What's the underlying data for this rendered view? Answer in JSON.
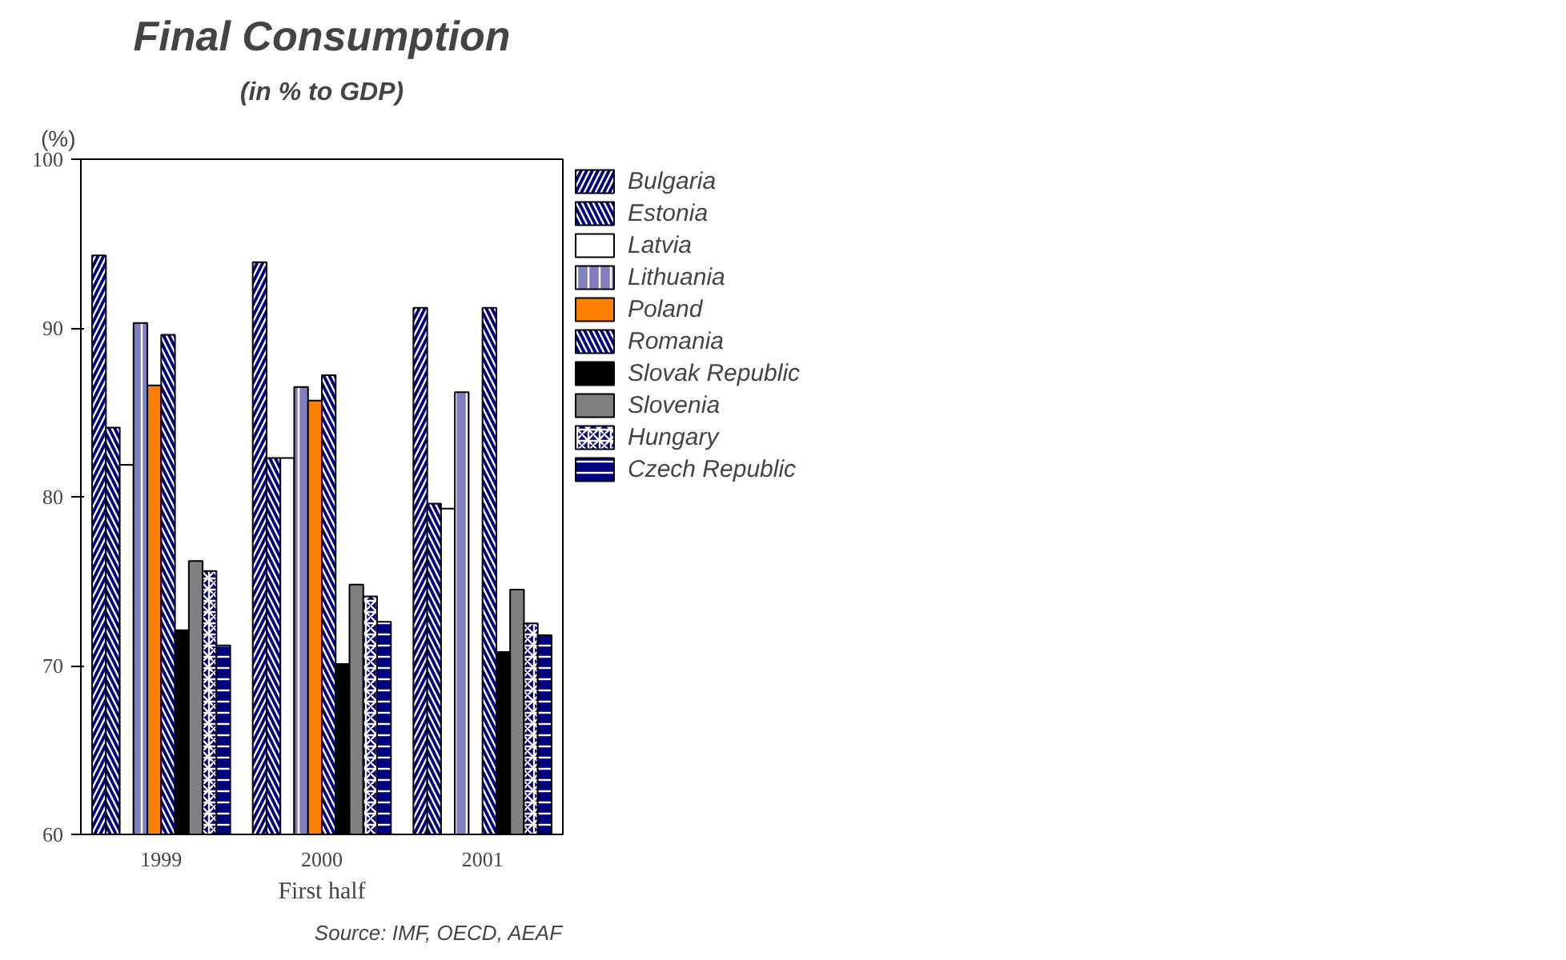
{
  "chart_data": {
    "type": "bar",
    "title": "Final Consumption",
    "subtitle": "(in % to GDP)",
    "xlabel": "First half",
    "ylabel": "(%)",
    "categories": [
      "1999",
      "2000",
      "2001"
    ],
    "series": [
      {
        "name": "Bulgaria",
        "color": "#000080",
        "values": [
          94.3,
          93.9,
          91.2
        ]
      },
      {
        "name": "Estonia",
        "color": "#000080",
        "values": [
          84.1,
          82.3,
          79.6
        ]
      },
      {
        "name": "Latvia",
        "color": "#ffffff",
        "values": [
          81.9,
          82.3,
          79.3
        ]
      },
      {
        "name": "Lithuania",
        "color": "#8080c0",
        "values": [
          90.3,
          86.5,
          86.2
        ]
      },
      {
        "name": "Poland",
        "color": "#ff8000",
        "values": [
          86.6,
          85.7,
          null
        ]
      },
      {
        "name": "Romania",
        "color": "#000080",
        "values": [
          89.6,
          87.2,
          91.2
        ]
      },
      {
        "name": "Slovak Republic",
        "color": "#000000",
        "values": [
          72.1,
          70.1,
          70.8
        ]
      },
      {
        "name": "Slovenia",
        "color": "#808080",
        "values": [
          76.2,
          74.8,
          74.5
        ]
      },
      {
        "name": "Hungary",
        "color": "#000080",
        "values": [
          75.6,
          74.1,
          72.5
        ]
      },
      {
        "name": "Czech Republic",
        "color": "#000080",
        "values": [
          71.2,
          72.6,
          71.8
        ]
      }
    ],
    "ylim": [
      60,
      100
    ],
    "yticks": [
      60,
      70,
      80,
      90,
      100
    ],
    "grid": false,
    "legend": "right",
    "annotations": [
      "Source: IMF, OECD, AEAF"
    ]
  }
}
